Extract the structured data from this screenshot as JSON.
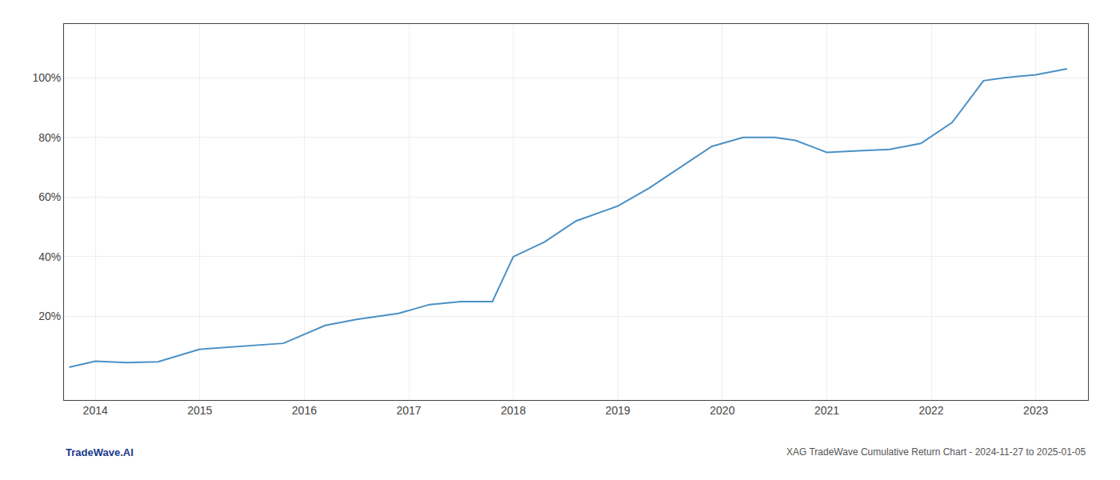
{
  "chart_data": {
    "type": "line",
    "x": [
      2013.75,
      2014.0,
      2014.3,
      2014.6,
      2015.0,
      2015.4,
      2015.8,
      2016.2,
      2016.5,
      2016.9,
      2017.2,
      2017.5,
      2017.8,
      2018.0,
      2018.3,
      2018.6,
      2019.0,
      2019.3,
      2019.6,
      2019.9,
      2020.2,
      2020.5,
      2020.7,
      2021.0,
      2021.3,
      2021.6,
      2021.9,
      2022.2,
      2022.5,
      2022.7,
      2023.0,
      2023.3
    ],
    "values": [
      3,
      5,
      4.5,
      4.8,
      9,
      10,
      11,
      17,
      19,
      21,
      24,
      25,
      25,
      40,
      45,
      52,
      57,
      63,
      70,
      77,
      80,
      80,
      79,
      75,
      75.5,
      76,
      78,
      85,
      99,
      100,
      101,
      103
    ],
    "color": "#4a90c4",
    "xlim": [
      2013.7,
      2023.5
    ],
    "xticks": [
      2014,
      2015,
      2016,
      2017,
      2018,
      2019,
      2020,
      2021,
      2022,
      2023
    ],
    "ylim": [
      -8,
      118
    ],
    "yticks": [
      {
        "value": 20,
        "label": "20%"
      },
      {
        "value": 40,
        "label": "40%"
      },
      {
        "value": 60,
        "label": "60%"
      },
      {
        "value": 80,
        "label": "80%"
      },
      {
        "value": 100,
        "label": "100%"
      }
    ],
    "grid": true,
    "annotations": [
      {
        "text": "TradeWave.AI",
        "color": "#1a3a8a"
      },
      {
        "text": "XAG TradeWave Cumulative Return Chart - 2024-11-27 to 2025-01-05",
        "color": "#555555"
      }
    ]
  }
}
